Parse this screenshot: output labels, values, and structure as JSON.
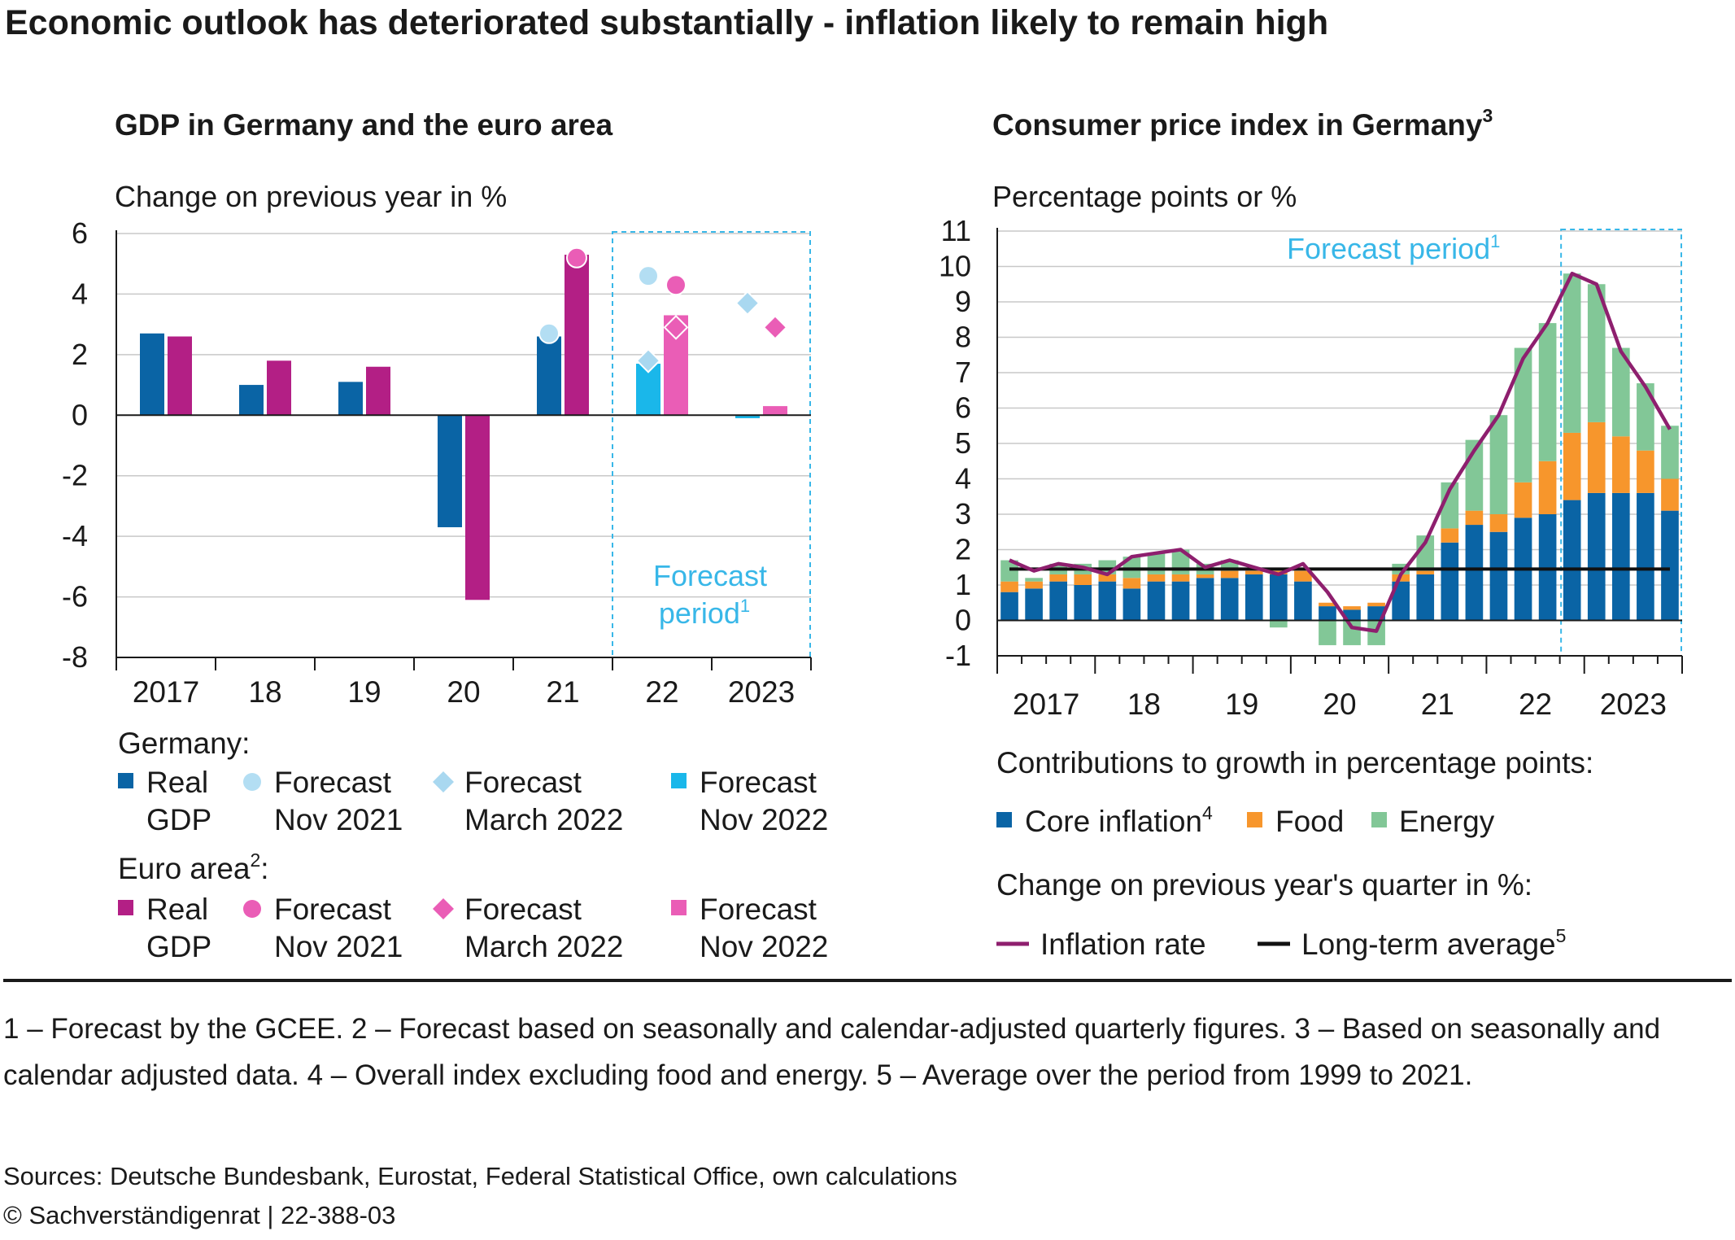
{
  "page": {
    "title": "Economic outlook has deteriorated substantially - inflation likely to remain high",
    "footnotes": "1 – Forecast by the GCEE.  2 – Forecast based on seasonally and calendar-adjusted quarterly figures.  3 – Based on seasonally and calendar adjusted data.  4 – Overall index excluding food and energy.  5 – Average over the period from 1999 to 2021.",
    "sources": "Sources: Deutsche Bundesbank, Eurostat, Federal Statistical Office, own calculations",
    "copyright": "© Sachverständigenrat | 22-388-03"
  },
  "colors": {
    "germany_real": "#0a64a5",
    "germany_forecast_nov2021": "#b3def3",
    "germany_forecast_mar2022": "#a9d8f0",
    "germany_forecast_nov2022": "#1ab7ea",
    "euro_real": "#b31f85",
    "euro_forecast": "#ea5db6",
    "core": "#0a64a5",
    "food": "#f7962c",
    "energy": "#82c797",
    "inflation_line": "#8e1f6e",
    "longterm_line": "#111111",
    "forecast_box": "#38b7e8",
    "grid": "#c8c8c8"
  },
  "chart_data": [
    {
      "type": "bar",
      "title": "GDP in Germany and the euro area",
      "ylabel": "Change on previous year in %",
      "ylim": [
        -8,
        6
      ],
      "yticks": [
        "6",
        "4",
        "2",
        "0",
        "-2",
        "-4",
        "-6",
        "-8"
      ],
      "categories": [
        "2017",
        "18",
        "19",
        "20",
        "21",
        "22",
        "2023"
      ],
      "forecast_label": [
        "Forecast",
        "period"
      ],
      "forecast_sup": "1",
      "series": [
        {
          "name": "Real GDP",
          "group": "Germany",
          "values": [
            2.7,
            1.0,
            1.1,
            -3.7,
            2.6,
            null,
            null
          ]
        },
        {
          "name": "Forecast Nov 2022",
          "group": "Germany",
          "values": [
            null,
            null,
            null,
            null,
            null,
            1.7,
            -0.1
          ]
        },
        {
          "name": "Real GDP",
          "group": "Euro area",
          "values": [
            2.6,
            1.8,
            1.6,
            -6.1,
            5.3,
            null,
            null
          ]
        },
        {
          "name": "Forecast Nov 2022",
          "group": "Euro area",
          "values": [
            null,
            null,
            null,
            null,
            null,
            3.3,
            0.3
          ]
        },
        {
          "name": "Forecast Nov 2021",
          "group": "Germany",
          "marker": "circle",
          "values": [
            null,
            null,
            null,
            null,
            2.7,
            4.6,
            null
          ]
        },
        {
          "name": "Forecast March 2022",
          "group": "Germany",
          "marker": "diamond",
          "values": [
            null,
            null,
            null,
            null,
            null,
            1.8,
            3.7
          ]
        },
        {
          "name": "Forecast Nov 2021",
          "group": "Euro area",
          "marker": "circle",
          "values": [
            null,
            null,
            null,
            null,
            5.2,
            4.3,
            null
          ]
        },
        {
          "name": "Forecast March 2022",
          "group": "Euro area",
          "marker": "diamond",
          "values": [
            null,
            null,
            null,
            null,
            null,
            2.9,
            2.9
          ]
        }
      ],
      "legend": {
        "germany_title": "Germany:",
        "euro_title": "Euro area",
        "euro_sup": "2",
        "euro_colon": ":",
        "items": [
          {
            "line1": "Real",
            "line2": "GDP"
          },
          {
            "line1": "Forecast",
            "line2": "Nov 2021"
          },
          {
            "line1": "Forecast",
            "line2": "March 2022"
          },
          {
            "line1": "Forecast",
            "line2": "Nov 2022"
          }
        ]
      }
    },
    {
      "type": "bar",
      "stacked": true,
      "title": "Consumer price index in Germany",
      "title_sup": "3",
      "ylabel": "Percentage points or %",
      "ylim": [
        -1,
        11
      ],
      "yticks": [
        "11",
        "10",
        "9",
        "8",
        "7",
        "6",
        "5",
        "4",
        "3",
        "2",
        "1",
        "0",
        "-1"
      ],
      "year_labels": [
        "2017",
        "18",
        "19",
        "20",
        "21",
        "22",
        "2023"
      ],
      "quarters": [
        "2017 Q1",
        "2017 Q2",
        "2017 Q3",
        "2017 Q4",
        "2018 Q1",
        "2018 Q2",
        "2018 Q3",
        "2018 Q4",
        "2019 Q1",
        "2019 Q2",
        "2019 Q3",
        "2019 Q4",
        "2020 Q1",
        "2020 Q2",
        "2020 Q3",
        "2020 Q4",
        "2021 Q1",
        "2021 Q2",
        "2021 Q3",
        "2021 Q4",
        "2022 Q1",
        "2022 Q2",
        "2022 Q3",
        "2022 Q4",
        "2023 Q1",
        "2023 Q2",
        "2023 Q3",
        "2023 Q4"
      ],
      "forecast_label": "Forecast period",
      "forecast_sup": "1",
      "series": [
        {
          "name": "Core inflation",
          "values": [
            0.8,
            0.9,
            1.1,
            1.0,
            1.1,
            0.9,
            1.1,
            1.1,
            1.2,
            1.2,
            1.3,
            1.3,
            1.1,
            0.4,
            0.3,
            0.4,
            1.1,
            1.3,
            2.2,
            2.7,
            2.5,
            2.9,
            3.0,
            3.4,
            3.6,
            3.6,
            3.6,
            3.1
          ]
        },
        {
          "name": "Food",
          "values": [
            0.3,
            0.2,
            0.2,
            0.3,
            0.2,
            0.3,
            0.2,
            0.2,
            0.1,
            0.2,
            0.1,
            0.1,
            0.3,
            0.1,
            0.1,
            0.1,
            0.2,
            0.1,
            0.4,
            0.4,
            0.5,
            1.0,
            1.5,
            1.9,
            2.0,
            1.6,
            1.2,
            0.9
          ]
        },
        {
          "name": "Energy",
          "values": [
            0.6,
            0.1,
            0.3,
            0.3,
            0.4,
            0.6,
            0.6,
            0.7,
            0.3,
            0.3,
            0.0,
            -0.2,
            0.0,
            -0.7,
            -0.7,
            -0.7,
            0.3,
            1.0,
            1.3,
            2.0,
            2.8,
            3.8,
            3.9,
            4.5,
            3.9,
            2.5,
            1.9,
            1.5
          ]
        },
        {
          "name": "Inflation rate",
          "values": [
            1.7,
            1.4,
            1.6,
            1.5,
            1.3,
            1.8,
            1.9,
            2.0,
            1.5,
            1.7,
            1.5,
            1.3,
            1.6,
            0.8,
            -0.2,
            -0.3,
            1.3,
            2.2,
            3.7,
            4.8,
            5.8,
            7.4,
            8.4,
            9.8,
            9.5,
            7.6,
            6.6,
            5.4
          ]
        },
        {
          "name": "Long-term average",
          "value": 1.45
        }
      ],
      "legend": {
        "contrib_title": "Contributions to growth in percentage points:",
        "core": "Core inflation",
        "core_sup": "4",
        "food": "Food",
        "energy": "Energy",
        "change_title": "Change on previous year's quarter in %:",
        "inflation": "Inflation rate",
        "longterm": "Long-term average",
        "longterm_sup": "5"
      }
    }
  ]
}
